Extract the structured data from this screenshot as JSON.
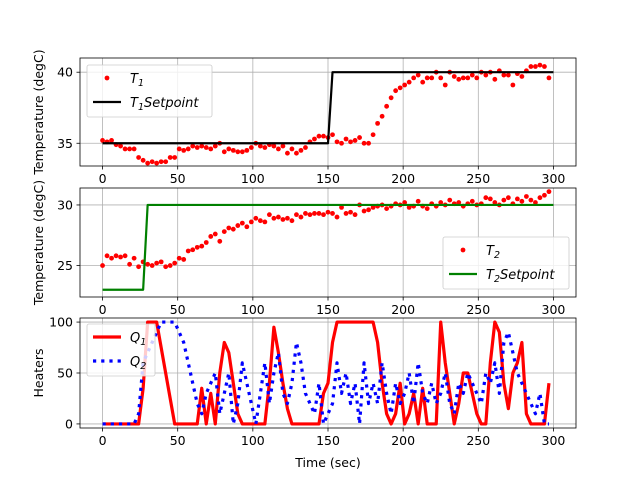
{
  "figure": {
    "xlabel": "Time (sec)"
  },
  "chart_data": [
    {
      "type": "line",
      "ylabel": "Temperature (degC)",
      "xlim": [
        -15,
        315
      ],
      "ylim": [
        33.4,
        41.0
      ],
      "xticks": [
        0,
        50,
        100,
        150,
        200,
        250,
        300
      ],
      "yticks": [
        35,
        40
      ],
      "grid": true,
      "legend_position": "upper left",
      "series": [
        {
          "name": "T1",
          "name_base": "T",
          "name_sub": "1",
          "name_suffix": "",
          "style": "dots",
          "color": "#ff0000",
          "x": [
            0,
            3,
            6,
            9,
            12,
            15,
            18,
            21,
            24,
            27,
            30,
            33,
            36,
            39,
            42,
            45,
            48,
            51,
            54,
            57,
            60,
            63,
            66,
            69,
            72,
            75,
            78,
            81,
            84,
            87,
            90,
            93,
            96,
            99,
            102,
            105,
            108,
            111,
            114,
            117,
            120,
            123,
            126,
            129,
            132,
            135,
            138,
            141,
            144,
            147,
            150,
            153,
            156,
            159,
            162,
            165,
            168,
            171,
            174,
            177,
            180,
            183,
            186,
            189,
            192,
            195,
            198,
            201,
            204,
            207,
            210,
            213,
            216,
            219,
            222,
            225,
            228,
            231,
            234,
            237,
            240,
            243,
            246,
            249,
            252,
            255,
            258,
            261,
            264,
            267,
            270,
            273,
            276,
            279,
            282,
            285,
            288,
            291,
            294,
            297
          ],
          "y": [
            35.2,
            35.1,
            35.2,
            34.9,
            34.8,
            34.6,
            34.6,
            34.6,
            34.0,
            33.8,
            33.6,
            33.7,
            33.6,
            33.7,
            33.7,
            34.0,
            34.0,
            34.6,
            34.5,
            34.6,
            34.8,
            34.7,
            34.8,
            34.7,
            34.6,
            34.8,
            35.0,
            34.4,
            34.6,
            34.5,
            34.4,
            34.4,
            34.5,
            34.7,
            35.0,
            34.8,
            34.7,
            34.9,
            34.8,
            34.6,
            34.8,
            34.3,
            34.6,
            34.3,
            34.5,
            34.7,
            35.1,
            35.3,
            35.5,
            35.5,
            35.4,
            35.6,
            35.1,
            35.0,
            35.3,
            35.1,
            35.2,
            35.4,
            35.0,
            35.0,
            35.6,
            36.4,
            36.9,
            37.6,
            38.2,
            38.7,
            38.9,
            39.1,
            39.3,
            39.6,
            39.8,
            39.3,
            39.6,
            39.6,
            40.0,
            39.6,
            39.1,
            40.0,
            39.7,
            39.5,
            39.6,
            39.6,
            39.8,
            39.6,
            40.0,
            39.8,
            40.0,
            39.5,
            40.1,
            39.8,
            39.8,
            39.1,
            39.9,
            39.7,
            40.1,
            40.4,
            40.4,
            40.5,
            40.4,
            39.6
          ]
        },
        {
          "name": "T1Setpoint",
          "name_base": "T",
          "name_sub": "1",
          "name_suffix": "Setpoint",
          "style": "line",
          "color": "#000000",
          "width": 2.2,
          "x": [
            0,
            150,
            153,
            300
          ],
          "y": [
            35,
            35,
            40,
            40
          ]
        }
      ]
    },
    {
      "type": "line",
      "ylabel": "Temperature (degC)",
      "xlim": [
        -15,
        315
      ],
      "ylim": [
        22.4,
        31.4
      ],
      "xticks": [
        0,
        50,
        100,
        150,
        200,
        250,
        300
      ],
      "yticks": [
        25,
        30
      ],
      "grid": true,
      "legend_position": "lower right",
      "series": [
        {
          "name": "T2",
          "name_base": "T",
          "name_sub": "2",
          "name_suffix": "",
          "style": "dots",
          "color": "#ff0000",
          "x": [
            0,
            3,
            6,
            9,
            12,
            15,
            18,
            21,
            24,
            27,
            30,
            33,
            36,
            39,
            42,
            45,
            48,
            51,
            54,
            57,
            60,
            63,
            66,
            69,
            72,
            75,
            78,
            81,
            84,
            87,
            90,
            93,
            96,
            99,
            102,
            105,
            108,
            111,
            114,
            117,
            120,
            123,
            126,
            129,
            132,
            135,
            138,
            141,
            144,
            147,
            150,
            153,
            156,
            159,
            162,
            165,
            168,
            171,
            174,
            177,
            180,
            183,
            186,
            189,
            192,
            195,
            198,
            201,
            204,
            207,
            210,
            213,
            216,
            219,
            222,
            225,
            228,
            231,
            234,
            237,
            240,
            243,
            246,
            249,
            252,
            255,
            258,
            261,
            264,
            267,
            270,
            273,
            276,
            279,
            282,
            285,
            288,
            291,
            294,
            297
          ],
          "y": [
            25.0,
            25.8,
            25.6,
            25.8,
            25.7,
            25.8,
            25.1,
            25.6,
            24.9,
            25.3,
            25.1,
            25.0,
            25.2,
            25.3,
            24.9,
            25.0,
            25.2,
            25.6,
            25.5,
            26.2,
            26.3,
            26.5,
            26.6,
            26.9,
            27.4,
            27.6,
            27.0,
            27.8,
            28.1,
            28.0,
            28.3,
            28.5,
            28.2,
            28.6,
            28.9,
            28.7,
            28.6,
            29.2,
            28.9,
            29.0,
            28.8,
            28.9,
            28.7,
            29.2,
            29.0,
            29.3,
            29.2,
            29.3,
            29.3,
            29.2,
            29.4,
            29.3,
            29.0,
            29.8,
            29.3,
            29.4,
            29.2,
            30.0,
            29.5,
            29.6,
            29.8,
            29.9,
            30.0,
            29.7,
            29.9,
            30.1,
            30.0,
            30.2,
            29.8,
            29.9,
            30.3,
            29.9,
            29.7,
            30.1,
            29.9,
            30.2,
            30.0,
            30.4,
            30.1,
            30.2,
            29.9,
            30.1,
            30.3,
            30.0,
            30.1,
            30.6,
            30.5,
            30.2,
            30.0,
            30.4,
            30.6,
            30.1,
            30.5,
            30.3,
            30.7,
            30.4,
            30.2,
            30.6,
            30.8,
            31.1
          ]
        },
        {
          "name": "T2Setpoint",
          "name_base": "T",
          "name_sub": "2",
          "name_suffix": "Setpoint",
          "style": "line",
          "color": "#008000",
          "width": 2.2,
          "x": [
            0,
            27,
            30,
            300
          ],
          "y": [
            23,
            23,
            30,
            30
          ]
        }
      ]
    },
    {
      "type": "line",
      "ylabel": "Heaters",
      "xlim": [
        -15,
        315
      ],
      "ylim": [
        -4,
        104
      ],
      "xticks": [
        0,
        50,
        100,
        150,
        200,
        250,
        300
      ],
      "yticks": [
        0,
        50,
        100
      ],
      "grid": true,
      "legend_position": "upper left",
      "series": [
        {
          "name": "Q1",
          "name_base": "Q",
          "name_sub": "1",
          "name_suffix": "",
          "style": "line",
          "color": "#ff0000",
          "width": 3.2,
          "x": [
            0,
            3,
            6,
            9,
            12,
            15,
            18,
            21,
            24,
            27,
            30,
            33,
            36,
            39,
            42,
            45,
            48,
            51,
            54,
            57,
            60,
            63,
            66,
            69,
            72,
            75,
            78,
            81,
            84,
            87,
            90,
            93,
            96,
            99,
            102,
            105,
            108,
            111,
            114,
            117,
            120,
            123,
            126,
            129,
            132,
            135,
            138,
            141,
            144,
            147,
            150,
            153,
            156,
            159,
            162,
            165,
            168,
            171,
            174,
            177,
            180,
            183,
            186,
            189,
            192,
            195,
            198,
            201,
            204,
            207,
            210,
            213,
            216,
            219,
            222,
            225,
            228,
            231,
            234,
            237,
            240,
            243,
            246,
            249,
            252,
            255,
            258,
            261,
            264,
            267,
            270,
            273,
            276,
            279,
            282,
            285,
            288,
            291,
            294,
            297
          ],
          "y": [
            0,
            0,
            0,
            0,
            0,
            0,
            0,
            0,
            0,
            35,
            100,
            100,
            100,
            75,
            50,
            25,
            0,
            0,
            0,
            0,
            0,
            0,
            35,
            0,
            30,
            0,
            50,
            80,
            70,
            40,
            10,
            0,
            0,
            0,
            0,
            0,
            0,
            40,
            95,
            70,
            40,
            15,
            0,
            0,
            0,
            0,
            0,
            0,
            0,
            30,
            40,
            80,
            100,
            100,
            100,
            100,
            100,
            100,
            100,
            100,
            100,
            80,
            40,
            10,
            0,
            10,
            40,
            0,
            10,
            30,
            0,
            35,
            0,
            0,
            0,
            100,
            60,
            30,
            0,
            20,
            50,
            50,
            30,
            10,
            0,
            0,
            60,
            100,
            90,
            40,
            15,
            50,
            60,
            80,
            10,
            0,
            0,
            0,
            0,
            40
          ]
        },
        {
          "name": "Q2",
          "name_base": "Q",
          "name_sub": "2",
          "name_suffix": "",
          "style": "dotted",
          "color": "#0000ff",
          "width": 3.2,
          "x": [
            0,
            3,
            6,
            9,
            12,
            15,
            18,
            21,
            24,
            27,
            30,
            33,
            36,
            39,
            42,
            45,
            48,
            51,
            54,
            57,
            60,
            63,
            66,
            69,
            72,
            75,
            78,
            81,
            84,
            87,
            90,
            93,
            96,
            99,
            102,
            105,
            108,
            111,
            114,
            117,
            120,
            123,
            126,
            129,
            132,
            135,
            138,
            141,
            144,
            147,
            150,
            153,
            156,
            159,
            162,
            165,
            168,
            171,
            174,
            177,
            180,
            183,
            186,
            189,
            192,
            195,
            198,
            201,
            204,
            207,
            210,
            213,
            216,
            219,
            222,
            225,
            228,
            231,
            234,
            237,
            240,
            243,
            246,
            249,
            252,
            255,
            258,
            261,
            264,
            267,
            270,
            273,
            276,
            279,
            282,
            285,
            288,
            291,
            294,
            297
          ],
          "y": [
            0,
            0,
            0,
            0,
            0,
            0,
            0,
            0,
            10,
            60,
            70,
            80,
            90,
            100,
            100,
            100,
            100,
            90,
            80,
            60,
            40,
            20,
            10,
            30,
            40,
            50,
            10,
            30,
            50,
            0,
            20,
            60,
            40,
            20,
            0,
            30,
            60,
            20,
            50,
            70,
            30,
            20,
            40,
            80,
            60,
            30,
            20,
            10,
            40,
            0,
            10,
            20,
            60,
            30,
            50,
            20,
            40,
            0,
            60,
            20,
            40,
            20,
            60,
            30,
            10,
            40,
            20,
            30,
            50,
            20,
            60,
            30,
            20,
            40,
            20,
            30,
            50,
            20,
            10,
            40,
            30,
            50,
            40,
            30,
            20,
            50,
            40,
            60,
            30,
            80,
            90,
            70,
            50,
            40,
            30,
            20,
            10,
            30,
            0,
            0
          ]
        }
      ]
    }
  ]
}
